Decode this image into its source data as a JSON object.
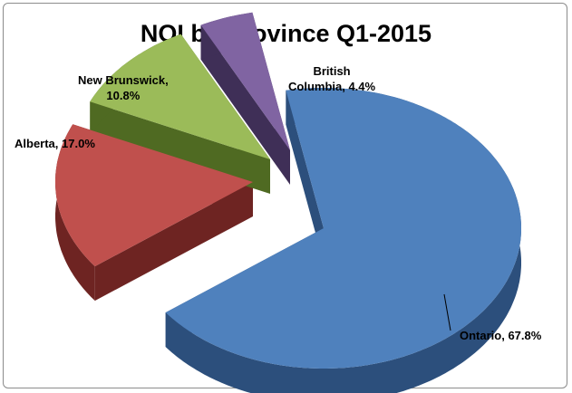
{
  "chart_data": {
    "type": "pie",
    "title": "NOI by Province Q1-2015",
    "slices": [
      {
        "name": "Ontario",
        "value": 67.8,
        "label": "Ontario, 67.8%",
        "color": "#4f81bd",
        "side": "#2c4f7c"
      },
      {
        "name": "Alberta",
        "value": 17.0,
        "label": "Alberta, 17.0%",
        "color": "#c0504d",
        "side": "#6e2422"
      },
      {
        "name": "New Brunswick",
        "value": 10.8,
        "label_lines": [
          "New Brunswick,",
          "10.8%"
        ],
        "color": "#9bbb59",
        "side": "#4f6a22"
      },
      {
        "name": "British Columbia",
        "value": 4.4,
        "label_lines": [
          "British",
          "Columbia, 4.4%"
        ],
        "color": "#8064a2",
        "side": "#3f2f57"
      }
    ]
  }
}
